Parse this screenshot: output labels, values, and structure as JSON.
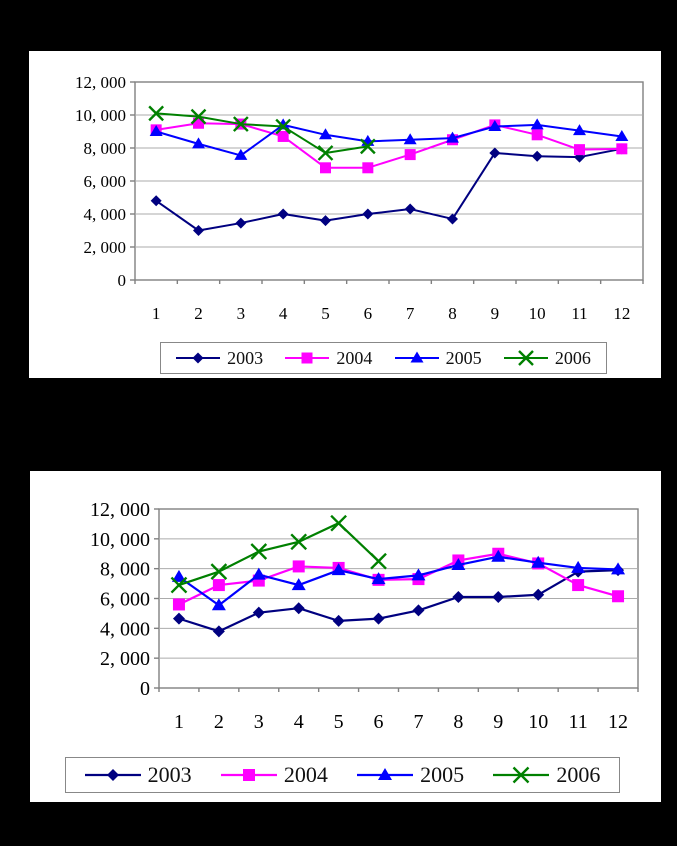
{
  "background_color": "#000000",
  "panel_color": "#FFFFFF",
  "colors": {
    "gridline": "#ABABAB",
    "plot_border": "#808080",
    "tick": "#808080",
    "text": "#000000",
    "series_2003": "#000080",
    "series_2004": "#FF00FF",
    "series_2005": "#0000FF",
    "series_2006": "#008000"
  },
  "chart_data": [
    {
      "type": "line",
      "title": "",
      "xlabel": "",
      "ylabel": "",
      "grid": true,
      "legend_position": "bottom",
      "ylim": [
        0,
        12000
      ],
      "categories": [
        "1",
        "2",
        "3",
        "4",
        "5",
        "6",
        "7",
        "8",
        "9",
        "10",
        "11",
        "12"
      ],
      "yticks": [
        {
          "value": 12000,
          "label": "12, 000"
        },
        {
          "value": 10000,
          "label": "10, 000"
        },
        {
          "value": 8000,
          "label": "8, 000"
        },
        {
          "value": 6000,
          "label": "6, 000"
        },
        {
          "value": 4000,
          "label": "4, 000"
        },
        {
          "value": 2000,
          "label": "2, 000"
        },
        {
          "value": 0,
          "label": "0"
        }
      ],
      "series": [
        {
          "name": "2003",
          "color": "#000080",
          "marker": "diamond",
          "values": [
            4800,
            3000,
            3450,
            4000,
            3600,
            4000,
            4300,
            3700,
            7700,
            7500,
            7450,
            7950
          ]
        },
        {
          "name": "2004",
          "color": "#FF00FF",
          "marker": "square",
          "values": [
            9100,
            9500,
            9450,
            8700,
            6800,
            6800,
            7600,
            8500,
            9400,
            8800,
            7900,
            7950
          ]
        },
        {
          "name": "2005",
          "color": "#0000FF",
          "marker": "triangle",
          "values": [
            9000,
            8250,
            7550,
            9400,
            8800,
            8400,
            8500,
            8600,
            9300,
            9400,
            9050,
            8700
          ]
        },
        {
          "name": "2006",
          "color": "#008000",
          "marker": "x",
          "values": [
            10100,
            9900,
            9450,
            9300,
            7700,
            8100
          ]
        }
      ]
    },
    {
      "type": "line",
      "title": "",
      "xlabel": "",
      "ylabel": "",
      "grid": true,
      "legend_position": "bottom",
      "ylim": [
        0,
        12000
      ],
      "categories": [
        "1",
        "2",
        "3",
        "4",
        "5",
        "6",
        "7",
        "8",
        "9",
        "10",
        "11",
        "12"
      ],
      "yticks": [
        {
          "value": 12000,
          "label": "12, 000"
        },
        {
          "value": 10000,
          "label": "10, 000"
        },
        {
          "value": 8000,
          "label": "8, 000"
        },
        {
          "value": 6000,
          "label": "6, 000"
        },
        {
          "value": 4000,
          "label": "4, 000"
        },
        {
          "value": 2000,
          "label": "2, 000"
        },
        {
          "value": 0,
          "label": "0"
        }
      ],
      "series": [
        {
          "name": "2003",
          "color": "#000080",
          "marker": "diamond",
          "values": [
            4650,
            3800,
            5050,
            5350,
            4500,
            4650,
            5200,
            6100,
            6100,
            6250,
            7800,
            7900
          ]
        },
        {
          "name": "2004",
          "color": "#FF00FF",
          "marker": "square",
          "values": [
            5600,
            6900,
            7200,
            8150,
            8050,
            7250,
            7300,
            8550,
            9000,
            8350,
            6900,
            6150
          ]
        },
        {
          "name": "2005",
          "color": "#0000FF",
          "marker": "triangle",
          "values": [
            7450,
            5550,
            7600,
            6900,
            7900,
            7300,
            7550,
            8250,
            8800,
            8400,
            8050,
            7950
          ]
        },
        {
          "name": "2006",
          "color": "#008000",
          "marker": "x",
          "values": [
            6900,
            7800,
            9150,
            9800,
            11050,
            8500
          ]
        }
      ]
    }
  ]
}
